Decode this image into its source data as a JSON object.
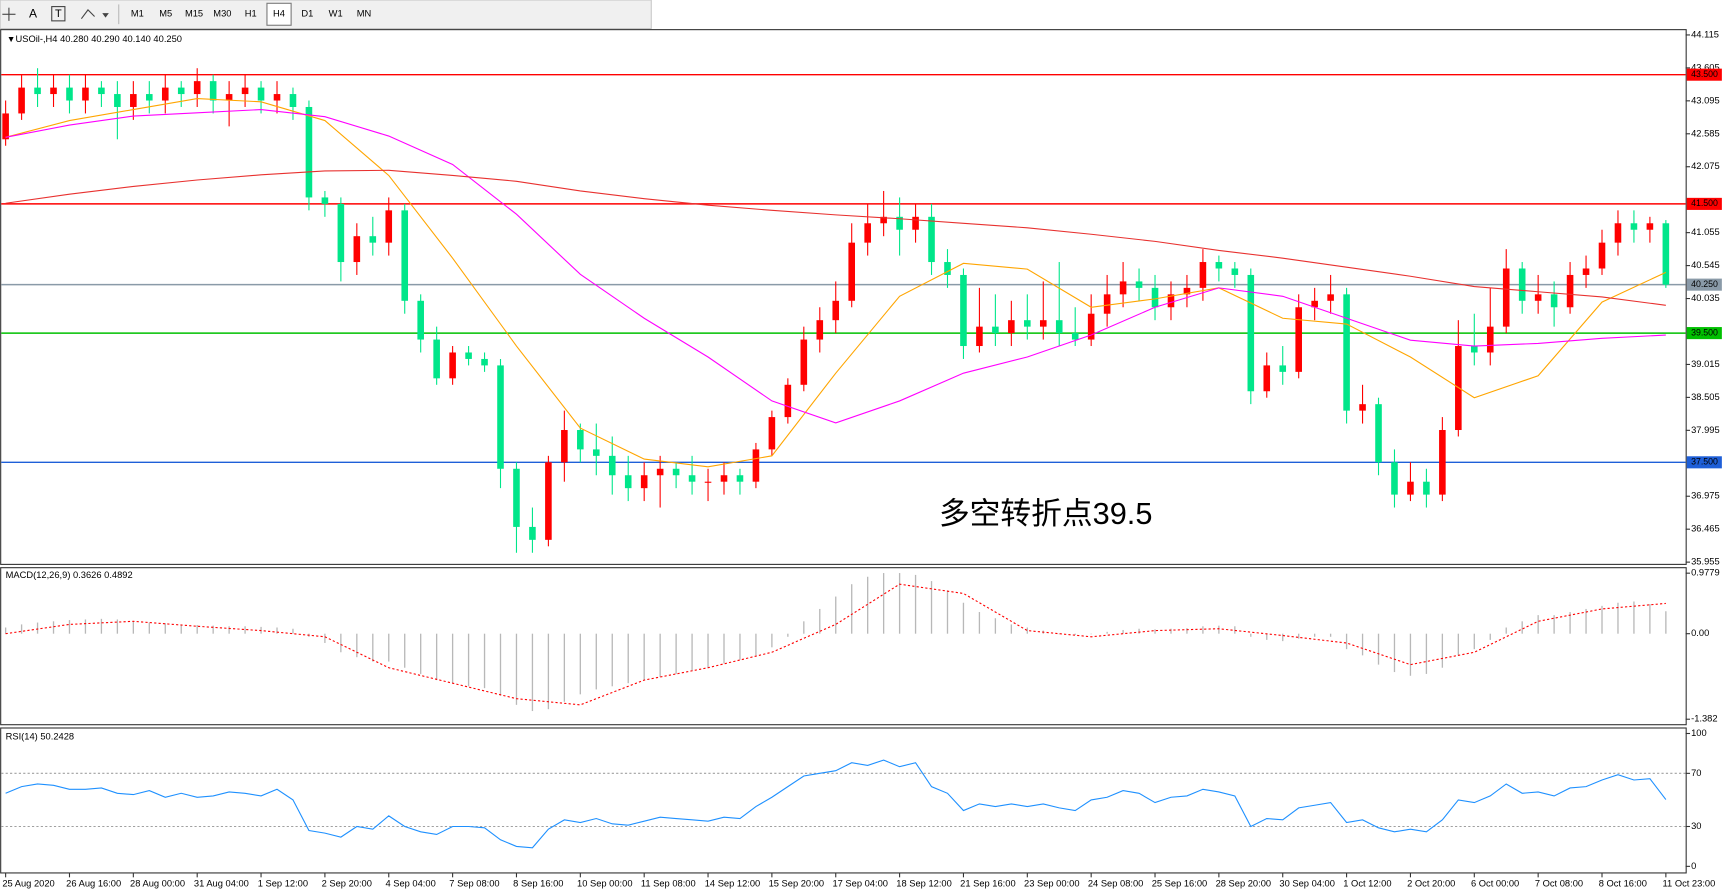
{
  "toolbar": {
    "tools": [
      "A",
      "T"
    ],
    "timeframes": [
      "M1",
      "M5",
      "M15",
      "M30",
      "H1",
      "H4",
      "D1",
      "W1",
      "MN"
    ],
    "active_index": 5
  },
  "chart_data": [
    {
      "type": "candlestick",
      "title": "USOil-,H4 40.280 40.290 40.140 40.250",
      "annotation": "多空转折点39.5",
      "annotation_color": "#ff0000",
      "categories": [
        "25 Aug 2020",
        null,
        null,
        null,
        "26 Aug 16:00",
        null,
        null,
        null,
        "28 Aug 00:00",
        null,
        null,
        null,
        "31 Aug 04:00",
        null,
        null,
        null,
        "1 Sep 12:00",
        null,
        null,
        null,
        "2 Sep 20:00",
        null,
        null,
        null,
        "4 Sep 04:00",
        null,
        null,
        null,
        "7 Sep 08:00",
        null,
        null,
        null,
        "8 Sep 16:00",
        null,
        null,
        null,
        "10 Sep 00:00",
        null,
        null,
        null,
        "11 Sep 08:00",
        null,
        null,
        null,
        "14 Sep 12:00",
        null,
        null,
        null,
        "15 Sep 20:00",
        null,
        null,
        null,
        "17 Sep 04:00",
        null,
        null,
        null,
        "18 Sep 12:00",
        null,
        null,
        null,
        "21 Sep 16:00",
        null,
        null,
        null,
        "23 Sep 00:00",
        null,
        null,
        null,
        "24 Sep 08:00",
        null,
        null,
        null,
        "25 Sep 16:00",
        null,
        null,
        null,
        "28 Sep 20:00",
        null,
        null,
        null,
        "30 Sep 04:00",
        null,
        null,
        null,
        "1 Oct 12:00",
        null,
        null,
        null,
        "2 Oct 20:00",
        null,
        null,
        null,
        "6 Oct 00:00",
        null,
        null,
        null,
        "7 Oct 08:00",
        null,
        null,
        null,
        "8 Oct 16:00",
        null,
        null,
        null,
        "11 Oct 23:00"
      ],
      "open": [
        42.5,
        42.9,
        43.3,
        43.2,
        43.3,
        43.1,
        43.3,
        43.2,
        43.0,
        43.2,
        43.1,
        43.3,
        43.2,
        43.4,
        43.1,
        43.2,
        43.3,
        43.1,
        43.2,
        43.0,
        41.6,
        41.5,
        40.6,
        41.0,
        40.9,
        41.4,
        40.0,
        39.4,
        38.8,
        39.2,
        39.1,
        39.0,
        37.4,
        36.5,
        36.3,
        37.5,
        38.0,
        37.7,
        37.6,
        37.3,
        37.1,
        37.3,
        37.4,
        37.3,
        37.2,
        37.2,
        37.3,
        37.2,
        37.7,
        38.2,
        38.7,
        39.4,
        39.7,
        40.0,
        40.9,
        41.2,
        41.3,
        41.1,
        41.3,
        40.6,
        40.4,
        39.3,
        39.6,
        39.5,
        39.7,
        39.6,
        39.7,
        39.5,
        39.4,
        39.8,
        40.1,
        40.3,
        40.2,
        39.9,
        40.1,
        40.2,
        40.6,
        40.5,
        40.4,
        38.6,
        39.0,
        38.9,
        39.9,
        40.0,
        40.1,
        38.3,
        38.4,
        37.5,
        37.0,
        37.2,
        37.0,
        38.0,
        39.3,
        39.2,
        39.6,
        40.5,
        40.0,
        40.1,
        39.9,
        40.4,
        40.5,
        40.9,
        41.2,
        41.1,
        41.2
      ],
      "high": [
        43.1,
        43.5,
        43.6,
        43.5,
        43.5,
        43.5,
        43.4,
        43.4,
        43.4,
        43.4,
        43.5,
        43.4,
        43.6,
        43.5,
        43.4,
        43.5,
        43.4,
        43.4,
        43.3,
        43.1,
        41.7,
        41.6,
        41.2,
        41.3,
        41.6,
        41.5,
        40.1,
        39.6,
        39.3,
        39.3,
        39.2,
        39.1,
        37.5,
        36.8,
        37.6,
        38.3,
        38.1,
        38.1,
        37.9,
        37.6,
        37.5,
        37.6,
        37.5,
        37.6,
        37.4,
        37.5,
        37.4,
        37.8,
        38.3,
        38.8,
        39.6,
        39.9,
        40.3,
        41.2,
        41.5,
        41.7,
        41.6,
        41.5,
        41.5,
        40.8,
        40.5,
        40.2,
        40.1,
        40.0,
        40.1,
        40.3,
        40.6,
        39.9,
        40.1,
        40.4,
        40.6,
        40.5,
        40.4,
        40.3,
        40.4,
        40.8,
        40.7,
        40.6,
        40.5,
        39.2,
        39.3,
        40.1,
        40.2,
        40.4,
        40.2,
        38.7,
        38.5,
        37.7,
        37.5,
        37.4,
        38.2,
        39.7,
        39.8,
        40.2,
        40.8,
        40.6,
        40.4,
        40.3,
        40.6,
        40.7,
        41.1,
        41.4,
        41.4,
        41.3,
        41.25
      ],
      "low": [
        42.4,
        42.8,
        43.0,
        43.0,
        42.9,
        42.9,
        43.0,
        42.5,
        42.8,
        42.9,
        42.9,
        43.0,
        43.0,
        42.9,
        42.7,
        43.0,
        42.9,
        42.9,
        42.8,
        41.4,
        41.3,
        40.3,
        40.4,
        40.7,
        40.7,
        39.8,
        39.2,
        38.7,
        38.7,
        39.0,
        38.9,
        37.1,
        36.1,
        36.1,
        36.2,
        37.2,
        37.5,
        37.3,
        37.0,
        36.9,
        36.9,
        36.8,
        37.1,
        37.0,
        36.9,
        37.0,
        37.0,
        37.1,
        37.6,
        38.1,
        38.6,
        39.2,
        39.5,
        39.9,
        40.7,
        41.0,
        40.7,
        40.9,
        40.4,
        40.2,
        39.1,
        39.2,
        39.3,
        39.3,
        39.4,
        39.4,
        39.3,
        39.3,
        39.3,
        39.6,
        39.9,
        40.0,
        39.7,
        39.7,
        39.9,
        40.0,
        40.3,
        40.2,
        38.4,
        38.5,
        38.7,
        38.8,
        39.7,
        39.8,
        38.1,
        38.1,
        37.3,
        36.8,
        36.9,
        36.8,
        36.9,
        37.9,
        39.0,
        39.0,
        39.5,
        39.8,
        39.8,
        39.6,
        39.8,
        40.2,
        40.4,
        40.7,
        40.9,
        40.9,
        40.2
      ],
      "close": [
        42.9,
        43.3,
        43.2,
        43.3,
        43.1,
        43.3,
        43.2,
        43.0,
        43.2,
        43.1,
        43.3,
        43.2,
        43.4,
        43.1,
        43.2,
        43.3,
        43.1,
        43.2,
        43.0,
        41.6,
        41.5,
        40.6,
        41.0,
        40.9,
        41.4,
        40.0,
        39.4,
        38.8,
        39.2,
        39.1,
        39.0,
        37.4,
        36.5,
        36.3,
        37.5,
        38.0,
        37.7,
        37.6,
        37.3,
        37.1,
        37.3,
        37.4,
        37.3,
        37.2,
        37.2,
        37.3,
        37.2,
        37.7,
        38.2,
        38.7,
        39.4,
        39.7,
        40.0,
        40.9,
        41.2,
        41.3,
        41.1,
        41.3,
        40.6,
        40.4,
        39.3,
        39.6,
        39.5,
        39.7,
        39.6,
        39.7,
        39.5,
        39.4,
        39.8,
        40.1,
        40.3,
        40.2,
        39.9,
        40.1,
        40.2,
        40.6,
        40.5,
        40.4,
        38.6,
        39.0,
        38.9,
        39.9,
        40.0,
        40.1,
        38.3,
        38.4,
        37.5,
        37.0,
        37.2,
        37.0,
        38.0,
        39.3,
        39.2,
        39.6,
        40.5,
        40.0,
        40.1,
        39.9,
        40.4,
        40.5,
        40.9,
        41.2,
        41.1,
        41.2,
        40.25
      ],
      "up_color": "#ff0000",
      "down_color": "#00e68a",
      "overlays": [
        {
          "color": "#ffa500",
          "values": [
            42.53,
            42.79,
            42.96,
            43.13,
            43.08,
            42.79,
            41.94,
            40.66,
            39.3,
            38.03,
            37.55,
            37.43,
            37.6,
            38.88,
            40.07,
            40.58,
            40.49,
            39.9,
            40.03,
            40.2,
            39.73,
            39.64,
            39.13,
            38.5,
            38.84,
            39.98,
            40.44
          ]
        },
        {
          "color": "#ff00ff",
          "values": [
            42.53,
            42.72,
            42.86,
            42.91,
            42.96,
            42.85,
            42.55,
            42.11,
            41.34,
            40.41,
            39.73,
            39.13,
            38.45,
            38.11,
            38.45,
            38.88,
            39.13,
            39.47,
            39.9,
            40.2,
            40.07,
            39.73,
            39.39,
            39.3,
            39.34,
            39.42,
            39.47
          ]
        },
        {
          "color": "#e8312f",
          "values": [
            41.51,
            41.65,
            41.77,
            41.87,
            41.95,
            42.01,
            42.02,
            41.94,
            41.85,
            41.7,
            41.58,
            41.48,
            41.4,
            41.33,
            41.27,
            41.2,
            41.13,
            41.03,
            40.92,
            40.78,
            40.66,
            40.52,
            40.38,
            40.22,
            40.14,
            40.06,
            39.93
          ]
        }
      ],
      "levels": [
        {
          "value": 43.5,
          "label": "43.500",
          "color": "#ff0000"
        },
        {
          "value": 41.5,
          "label": "41.500",
          "color": "#ff0000"
        },
        {
          "value": 39.5,
          "label": "39.500",
          "color": "#00c000"
        },
        {
          "value": 37.5,
          "label": "37.500",
          "color": "#1e5fd8"
        },
        {
          "value": 40.25,
          "label": "40.250",
          "color": "#8a9aa8"
        }
      ],
      "ylim": [
        35.92,
        44.18
      ],
      "yticks": [
        44.115,
        43.605,
        43.095,
        42.585,
        42.075,
        41.055,
        40.545,
        40.035,
        39.015,
        38.505,
        37.995,
        36.975,
        36.465,
        35.955
      ]
    },
    {
      "type": "macd",
      "title": "MACD(12,26,9) 0.3626 0.4892",
      "histogram": [
        0.1,
        0.15,
        0.18,
        0.2,
        0.22,
        0.23,
        0.24,
        0.23,
        0.2,
        0.18,
        0.17,
        0.15,
        0.14,
        0.13,
        0.12,
        0.12,
        0.11,
        0.1,
        0.08,
        -0.05,
        -0.15,
        -0.3,
        -0.38,
        -0.45,
        -0.45,
        -0.55,
        -0.65,
        -0.75,
        -0.8,
        -0.85,
        -0.88,
        -1.0,
        -1.15,
        -1.25,
        -1.22,
        -1.1,
        -0.98,
        -0.9,
        -0.85,
        -0.8,
        -0.75,
        -0.7,
        -0.65,
        -0.6,
        -0.55,
        -0.48,
        -0.42,
        -0.35,
        -0.22,
        -0.05,
        0.2,
        0.4,
        0.6,
        0.8,
        0.92,
        0.98,
        0.98,
        0.95,
        0.85,
        0.7,
        0.5,
        0.35,
        0.25,
        0.15,
        0.1,
        0.05,
        0.0,
        -0.02,
        0.0,
        0.03,
        0.06,
        0.08,
        0.07,
        0.08,
        0.09,
        0.12,
        0.13,
        0.12,
        -0.05,
        -0.1,
        -0.12,
        -0.08,
        -0.05,
        -0.05,
        -0.25,
        -0.35,
        -0.5,
        -0.62,
        -0.68,
        -0.65,
        -0.55,
        -0.35,
        -0.25,
        -0.1,
        0.1,
        0.2,
        0.3,
        0.3,
        0.35,
        0.4,
        0.45,
        0.5,
        0.52,
        0.48,
        0.3626
      ],
      "signal": [
        0.0,
        0.15,
        0.2,
        0.12,
        0.05,
        -0.05,
        -0.55,
        -0.8,
        -1.05,
        -1.15,
        -0.75,
        -0.55,
        -0.3,
        0.15,
        0.8,
        0.65,
        0.05,
        -0.05,
        0.05,
        0.08,
        -0.03,
        -0.15,
        -0.5,
        -0.3,
        0.2,
        0.4,
        0.4892
      ],
      "hist_color": "#b8b8b8",
      "signal_color": "#ff0000",
      "ylim": [
        -1.382,
        0.9779
      ],
      "yticks": [
        0.9779,
        {
          "value": 0,
          "label": "0.00"
        },
        -1.382
      ]
    },
    {
      "type": "line",
      "title": "RSI(14) 50.2428",
      "values": [
        55,
        60,
        62,
        61,
        58,
        58,
        59,
        55,
        54,
        57,
        52,
        55,
        52,
        53,
        56,
        55,
        53,
        58,
        50,
        27,
        25,
        22,
        30,
        28,
        38,
        30,
        26,
        24,
        30,
        30,
        29,
        20,
        15,
        14,
        28,
        35,
        33,
        36,
        32,
        31,
        34,
        37,
        36,
        35,
        34,
        37,
        36,
        45,
        52,
        60,
        68,
        70,
        72,
        78,
        76,
        80,
        75,
        78,
        60,
        55,
        42,
        47,
        45,
        47,
        45,
        47,
        44,
        42,
        50,
        52,
        57,
        55,
        48,
        52,
        53,
        58,
        56,
        53,
        30,
        36,
        35,
        44,
        46,
        48,
        33,
        35,
        29,
        26,
        28,
        26,
        35,
        50,
        48,
        53,
        62,
        55,
        56,
        53,
        59,
        60,
        65,
        69,
        65,
        66,
        50.2428
      ],
      "color": "#1e90ff",
      "ylim": [
        0,
        100
      ],
      "yticks": [
        100,
        70,
        30,
        0
      ],
      "grid": true
    }
  ]
}
